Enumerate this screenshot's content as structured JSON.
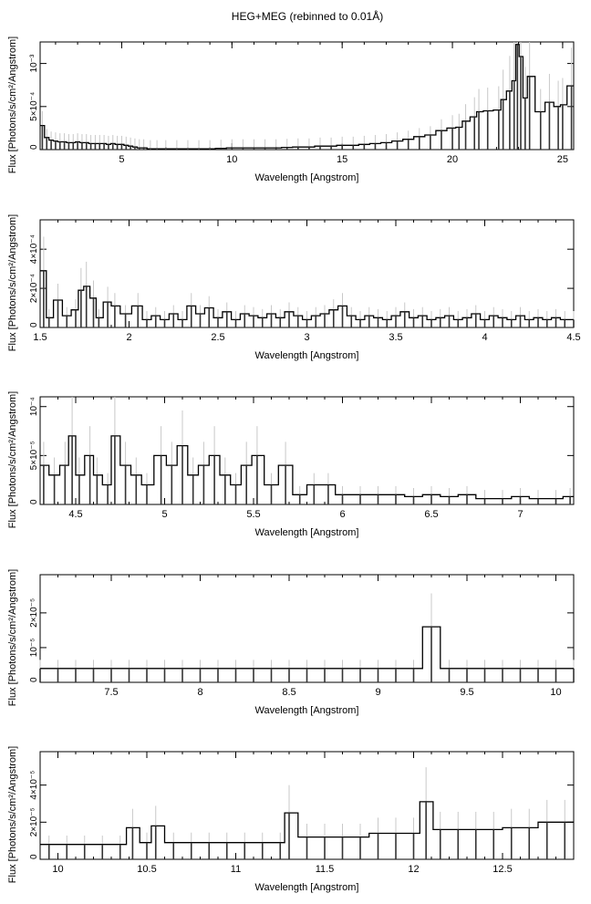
{
  "figure": {
    "title": "HEG+MEG (rebinned to 0.01Å)"
  },
  "chart_data": [
    {
      "type": "line",
      "xlabel": "Wavelength [Angstrom]",
      "ylabel": "Flux [Photons/s/cm²/Angstrom]",
      "xlim": [
        1.3,
        25.5
      ],
      "ylim": [
        0,
        0.00125
      ],
      "xticks": [
        5,
        10,
        15,
        20,
        25
      ],
      "yticks": [
        {
          "value": 0,
          "label": "0"
        },
        {
          "value": 0.0005,
          "label": "5×10⁻⁴"
        },
        {
          "value": 0.001,
          "label": "10⁻³"
        }
      ],
      "x": [
        1.4,
        1.6,
        1.8,
        2.0,
        2.2,
        2.4,
        2.6,
        2.8,
        3.0,
        3.2,
        3.4,
        3.6,
        3.8,
        4.0,
        4.2,
        4.4,
        4.6,
        4.8,
        5.0,
        5.2,
        5.4,
        5.6,
        5.8,
        6.0,
        6.3,
        6.6,
        7.0,
        7.5,
        8.0,
        8.5,
        9.0,
        9.5,
        10.0,
        10.5,
        11.0,
        11.5,
        12.0,
        12.5,
        13.0,
        13.5,
        14.0,
        14.5,
        15.0,
        15.5,
        16.0,
        16.5,
        17.0,
        17.5,
        18.0,
        18.5,
        19.0,
        19.5,
        20.0,
        20.3,
        20.6,
        21.0,
        21.2,
        21.6,
        22.1,
        22.3,
        22.6,
        22.8,
        22.95,
        23.1,
        23.3,
        23.5,
        24.0,
        24.4,
        24.8,
        25.0,
        25.4
      ],
      "values": [
        0.00028,
        0.00014,
        0.00011,
        0.0001,
        9e-05,
        9e-05,
        8e-05,
        8e-05,
        9e-05,
        8e-05,
        8e-05,
        7e-05,
        7e-05,
        7e-05,
        7e-05,
        6e-05,
        7e-05,
        6e-05,
        6e-05,
        5e-05,
        4e-05,
        3e-05,
        2e-05,
        2e-05,
        1e-05,
        1e-05,
        1e-05,
        1e-05,
        1e-05,
        1e-05,
        1e-05,
        1.5e-05,
        2e-05,
        2e-05,
        2e-05,
        2e-05,
        2e-05,
        2.5e-05,
        3e-05,
        3e-05,
        4e-05,
        4e-05,
        5e-05,
        5e-05,
        6e-05,
        7e-05,
        8e-05,
        0.0001,
        0.00012,
        0.00015,
        0.00017,
        0.00022,
        0.00025,
        0.00026,
        0.00033,
        0.00038,
        0.00044,
        0.00045,
        0.00046,
        0.00058,
        0.00068,
        0.0008,
        0.00122,
        0.00108,
        0.0006,
        0.00085,
        0.00044,
        0.00055,
        0.0005,
        0.00052,
        0.00074
      ]
    },
    {
      "type": "line",
      "xlabel": "Wavelength [Angstrom]",
      "ylabel": "Flux [Photons/s/cm²/Angstrom]",
      "xlim": [
        1.5,
        4.5
      ],
      "ylim": [
        0,
        0.00055
      ],
      "xticks": [
        1.5,
        2,
        2.5,
        3,
        3.5,
        4,
        4.5
      ],
      "yticks": [
        {
          "value": 0,
          "label": "0"
        },
        {
          "value": 0.0002,
          "label": "2×10⁻⁴"
        },
        {
          "value": 0.0004,
          "label": "4×10⁻⁴"
        }
      ],
      "x": [
        1.52,
        1.55,
        1.6,
        1.65,
        1.7,
        1.73,
        1.76,
        1.8,
        1.83,
        1.88,
        1.92,
        1.98,
        2.05,
        2.1,
        2.15,
        2.2,
        2.25,
        2.3,
        2.35,
        2.4,
        2.45,
        2.5,
        2.55,
        2.6,
        2.65,
        2.7,
        2.75,
        2.8,
        2.85,
        2.9,
        2.95,
        3.0,
        3.05,
        3.1,
        3.15,
        3.2,
        3.25,
        3.3,
        3.35,
        3.4,
        3.45,
        3.5,
        3.55,
        3.6,
        3.65,
        3.7,
        3.75,
        3.8,
        3.85,
        3.9,
        3.95,
        4.0,
        4.05,
        4.1,
        4.15,
        4.2,
        4.25,
        4.3,
        4.35,
        4.4,
        4.45,
        4.5
      ],
      "values": [
        0.00029,
        5e-05,
        0.00014,
        6e-05,
        9e-05,
        0.00019,
        0.00021,
        0.00015,
        5e-05,
        0.00013,
        0.00011,
        7e-05,
        0.00011,
        4e-05,
        6e-05,
        4e-05,
        7e-05,
        4e-05,
        0.00011,
        7e-05,
        0.0001,
        5e-05,
        8e-05,
        4e-05,
        7e-05,
        6e-05,
        5e-05,
        7e-05,
        5e-05,
        8e-05,
        6e-05,
        4e-05,
        6e-05,
        7e-05,
        9e-05,
        0.00011,
        6e-05,
        4e-05,
        6e-05,
        5e-05,
        4e-05,
        6e-05,
        8e-05,
        5e-05,
        6e-05,
        4e-05,
        5e-05,
        6e-05,
        4e-05,
        5e-05,
        7e-05,
        4e-05,
        6e-05,
        5e-05,
        4e-05,
        6e-05,
        4e-05,
        5e-05,
        4e-05,
        5e-05,
        4e-05,
        4e-05
      ]
    },
    {
      "type": "line",
      "xlabel": "Wavelength [Angstrom]",
      "ylabel": "Flux [Photons/s/cm²/Angstrom]",
      "xlim": [
        4.3,
        7.3
      ],
      "ylim": [
        0,
        0.00011
      ],
      "xticks": [
        4.5,
        5,
        5.5,
        6,
        6.5,
        7
      ],
      "yticks": [
        {
          "value": 0,
          "label": "0"
        },
        {
          "value": 5e-05,
          "label": "5×10⁻⁵"
        },
        {
          "value": 0.0001,
          "label": "10⁻⁴"
        }
      ],
      "x": [
        4.32,
        4.38,
        4.44,
        4.48,
        4.52,
        4.58,
        4.62,
        4.68,
        4.72,
        4.78,
        4.84,
        4.9,
        4.98,
        5.04,
        5.1,
        5.16,
        5.22,
        5.28,
        5.34,
        5.4,
        5.46,
        5.52,
        5.6,
        5.68,
        5.76,
        5.84,
        5.92,
        6.0,
        6.1,
        6.2,
        6.3,
        6.4,
        6.5,
        6.6,
        6.7,
        6.8,
        6.9,
        7.0,
        7.1,
        7.2,
        7.28
      ],
      "values": [
        4e-05,
        3e-05,
        4e-05,
        7e-05,
        3e-05,
        5e-05,
        3e-05,
        2e-05,
        7e-05,
        4e-05,
        3e-05,
        2e-05,
        5e-05,
        4e-05,
        6e-05,
        3e-05,
        4e-05,
        5e-05,
        3e-05,
        2e-05,
        4e-05,
        5e-05,
        2e-05,
        4e-05,
        1e-05,
        2e-05,
        2e-05,
        1e-05,
        1e-05,
        1e-05,
        1e-05,
        8e-06,
        1e-05,
        8e-06,
        1e-05,
        6e-06,
        6e-06,
        8e-06,
        6e-06,
        6e-06,
        8e-06
      ]
    },
    {
      "type": "line",
      "xlabel": "Wavelength [Angstrom]",
      "ylabel": "Flux [Photons/s/cm²/Angstrom]",
      "xlim": [
        7.1,
        10.1
      ],
      "ylim": [
        0,
        3.1e-05
      ],
      "xticks": [
        7.5,
        8,
        8.5,
        9,
        9.5,
        10
      ],
      "yticks": [
        {
          "value": 0,
          "label": "0"
        },
        {
          "value": 1e-05,
          "label": "10⁻⁵"
        },
        {
          "value": 2e-05,
          "label": "2×10⁻⁵"
        }
      ],
      "x": [
        7.1,
        7.2,
        7.3,
        7.4,
        7.5,
        7.6,
        7.7,
        7.8,
        7.9,
        8.0,
        8.1,
        8.2,
        8.3,
        8.4,
        8.5,
        8.6,
        8.7,
        8.8,
        8.9,
        9.0,
        9.1,
        9.2,
        9.3,
        9.4,
        9.5,
        9.6,
        9.7,
        9.8,
        9.9,
        10.0,
        10.1
      ],
      "values": [
        4e-06,
        4e-06,
        4e-06,
        4e-06,
        4e-06,
        4e-06,
        4e-06,
        4e-06,
        4e-06,
        4e-06,
        4e-06,
        4e-06,
        4e-06,
        4e-06,
        4e-06,
        4e-06,
        4e-06,
        4e-06,
        4e-06,
        4e-06,
        4e-06,
        4e-06,
        1.6e-05,
        4e-06,
        4e-06,
        4e-06,
        4e-06,
        4e-06,
        4e-06,
        4e-06,
        4e-06
      ]
    },
    {
      "type": "line",
      "xlabel": "Wavelength [Angstrom]",
      "ylabel": "Flux [Photons/s/cm²/Angstrom]",
      "xlim": [
        9.9,
        12.9
      ],
      "ylim": [
        0,
        5.8e-05
      ],
      "xticks": [
        10,
        10.5,
        11,
        11.5,
        12,
        12.5
      ],
      "yticks": [
        {
          "value": 0,
          "label": "0"
        },
        {
          "value": 2e-05,
          "label": "2×10⁻⁵"
        },
        {
          "value": 4e-05,
          "label": "4×10⁻⁵"
        }
      ],
      "x": [
        9.95,
        10.05,
        10.15,
        10.25,
        10.35,
        10.42,
        10.5,
        10.55,
        10.65,
        10.75,
        10.85,
        10.95,
        11.05,
        11.15,
        11.25,
        11.3,
        11.4,
        11.5,
        11.6,
        11.7,
        11.8,
        11.9,
        12.0,
        12.07,
        12.15,
        12.25,
        12.35,
        12.45,
        12.55,
        12.65,
        12.75,
        12.85
      ],
      "values": [
        8e-06,
        8e-06,
        8e-06,
        8e-06,
        8e-06,
        1.7e-05,
        9e-06,
        1.8e-05,
        9e-06,
        9e-06,
        9e-06,
        9e-06,
        9e-06,
        9e-06,
        9e-06,
        2.5e-05,
        1.2e-05,
        1.2e-05,
        1.2e-05,
        1.2e-05,
        1.4e-05,
        1.4e-05,
        1.4e-05,
        3.1e-05,
        1.6e-05,
        1.6e-05,
        1.6e-05,
        1.6e-05,
        1.7e-05,
        1.7e-05,
        2e-05,
        2e-05
      ]
    }
  ]
}
